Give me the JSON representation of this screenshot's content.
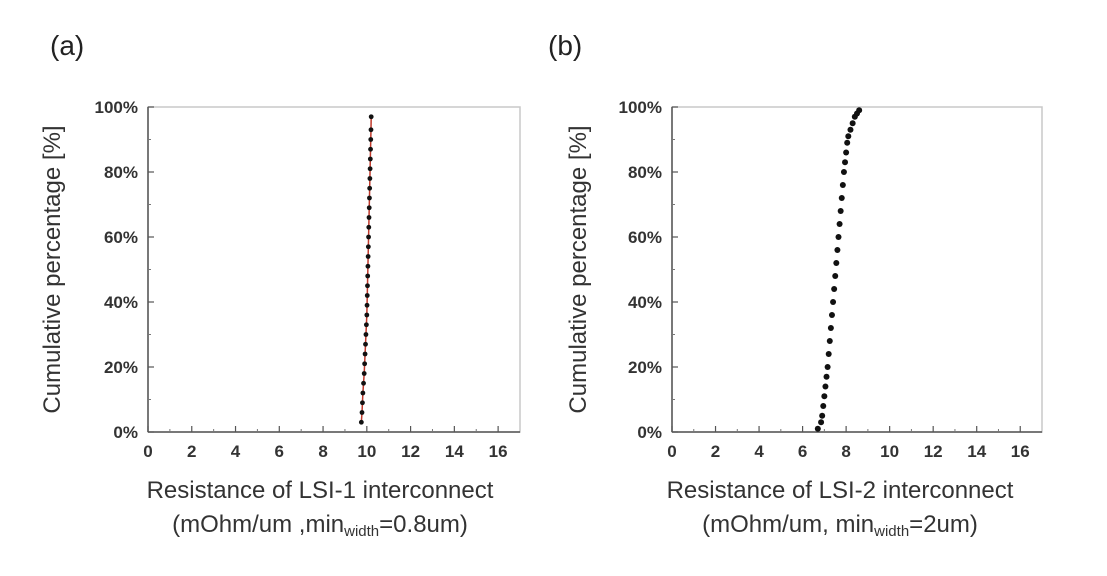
{
  "panels": [
    {
      "label": "(a)"
    },
    {
      "label": "(b)"
    }
  ],
  "chart_data": [
    {
      "type": "scatter",
      "panel": "(a)",
      "ylabel": "Cumulative percentage [%]",
      "xlabel_line1": "Resistance of LSI-1 interconnect",
      "xlabel_line2_pre": "(mOhm/um ,min",
      "xlabel_line2_sub": "width",
      "xlabel_line2_post": "=0.8um)",
      "xlim": [
        0,
        17
      ],
      "ylim": [
        0,
        100
      ],
      "xticks": [
        "0",
        "2",
        "4",
        "6",
        "8",
        "10",
        "12",
        "14",
        "16"
      ],
      "yticks": [
        "0%",
        "20%",
        "40%",
        "60%",
        "80%",
        "100%"
      ],
      "grid": false,
      "marker_color": "#111111",
      "line_color": "#c0392b",
      "x": [
        9.75,
        9.78,
        9.8,
        9.82,
        9.85,
        9.88,
        9.9,
        9.92,
        9.94,
        9.96,
        9.98,
        10.0,
        10.01,
        10.02,
        10.03,
        10.04,
        10.05,
        10.06,
        10.07,
        10.08,
        10.09,
        10.1,
        10.11,
        10.12,
        10.13,
        10.14,
        10.15,
        10.16,
        10.17,
        10.18,
        10.19,
        10.2
      ],
      "y": [
        3,
        6,
        9,
        12,
        15,
        18,
        21,
        24,
        27,
        30,
        33,
        36,
        39,
        42,
        45,
        48,
        51,
        54,
        57,
        60,
        63,
        66,
        69,
        72,
        75,
        78,
        81,
        84,
        87,
        90,
        93,
        97
      ]
    },
    {
      "type": "scatter",
      "panel": "(b)",
      "ylabel": "Cumulative percentage [%]",
      "xlabel_line1": "Resistance of LSI-2 interconnect",
      "xlabel_line2_pre": "(mOhm/um, min",
      "xlabel_line2_sub": "width",
      "xlabel_line2_post": "=2um)",
      "xlim": [
        0,
        17
      ],
      "ylim": [
        0,
        100
      ],
      "xticks": [
        "0",
        "2",
        "4",
        "6",
        "8",
        "10",
        "12",
        "14",
        "16"
      ],
      "yticks": [
        "0%",
        "20%",
        "40%",
        "60%",
        "80%",
        "100%"
      ],
      "grid": false,
      "marker_color": "#111111",
      "x": [
        6.7,
        6.85,
        6.9,
        6.95,
        7.0,
        7.05,
        7.1,
        7.15,
        7.2,
        7.25,
        7.3,
        7.35,
        7.4,
        7.45,
        7.5,
        7.55,
        7.6,
        7.65,
        7.7,
        7.75,
        7.8,
        7.85,
        7.9,
        7.95,
        8.0,
        8.05,
        8.1,
        8.2,
        8.3,
        8.4,
        8.5,
        8.6
      ],
      "y": [
        1,
        3,
        5,
        8,
        11,
        14,
        17,
        20,
        24,
        28,
        32,
        36,
        40,
        44,
        48,
        52,
        56,
        60,
        64,
        68,
        72,
        76,
        80,
        83,
        86,
        89,
        91,
        93,
        95,
        97,
        98,
        99
      ]
    }
  ]
}
